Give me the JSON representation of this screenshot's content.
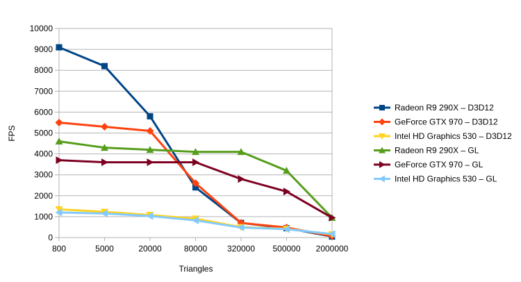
{
  "chart_data": {
    "type": "line",
    "title": "",
    "xlabel": "Triangles",
    "ylabel": "FPS",
    "categories": [
      "800",
      "5000",
      "20000",
      "80000",
      "320000",
      "500000",
      "2000000"
    ],
    "ylim": [
      0,
      10000
    ],
    "yticks": [
      0,
      1000,
      2000,
      3000,
      4000,
      5000,
      6000,
      7000,
      8000,
      9000,
      10000
    ],
    "grid": true,
    "legend_position": "right",
    "series": [
      {
        "name": "Radeon R9 290X – D3D12",
        "color": "#004586",
        "marker": "square",
        "values": [
          9100,
          8200,
          5800,
          2400,
          700,
          450,
          50
        ]
      },
      {
        "name": "GeForce GTX 970 – D3D12",
        "color": "#ff420e",
        "marker": "diamond",
        "values": [
          5500,
          5300,
          5100,
          2600,
          700,
          480,
          70
        ]
      },
      {
        "name": "Intel HD Graphics 530 – D3D12",
        "color": "#ffd320",
        "marker": "triangle-down",
        "values": [
          1350,
          1230,
          1080,
          900,
          500,
          420,
          150
        ]
      },
      {
        "name": "Radeon R9 290X – GL",
        "color": "#579d1c",
        "marker": "triangle-up",
        "values": [
          4600,
          4300,
          4200,
          4100,
          4100,
          3200,
          950
        ]
      },
      {
        "name": "GeForce GTX 970 – GL",
        "color": "#7e0021",
        "marker": "triangle-right",
        "values": [
          3700,
          3600,
          3600,
          3600,
          2800,
          2200,
          950
        ]
      },
      {
        "name": "Intel HD Graphics 530 – GL",
        "color": "#83caff",
        "marker": "triangle-left",
        "values": [
          1200,
          1150,
          1030,
          820,
          480,
          400,
          170
        ]
      }
    ]
  }
}
